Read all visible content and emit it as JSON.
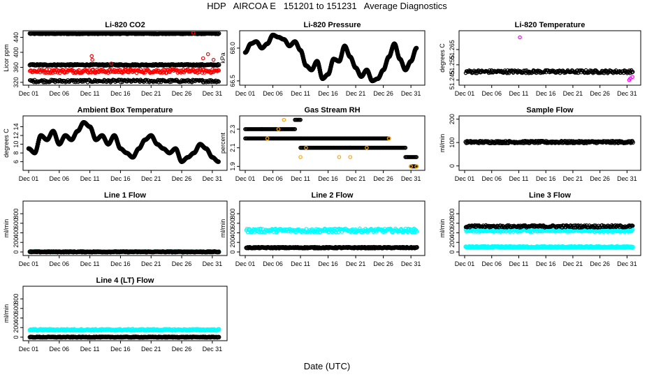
{
  "title": "HDP   AIRCOA E   151201 to 151231   Average Diagnostics",
  "xlabel": "Date (UTC)",
  "chart_data": [
    {
      "type": "scatter",
      "title": "Li-820 CO2",
      "ylabel": "Licor ppm",
      "ylim": [
        318,
        452
      ],
      "yticks": [
        320,
        360,
        400,
        440
      ],
      "xticks": [
        "Dec 01",
        "Dec 06",
        "Dec 11",
        "Dec 16",
        "Dec 21",
        "Dec 26",
        "Dec 31"
      ],
      "xlim": [
        0,
        31.5
      ],
      "series": [
        {
          "name": "high",
          "color": "#000000",
          "bands": [
            [
              449,
              451
            ]
          ]
        },
        {
          "name": "mid",
          "color": "#000000",
          "bands": [
            [
              365,
              368
            ]
          ]
        },
        {
          "name": "low",
          "color": "#000000",
          "bands": [
            [
              320,
              327
            ]
          ]
        },
        {
          "name": "red",
          "color": "#ff0000",
          "bands": [
            [
              345,
              355
            ]
          ],
          "outliers": [
            [
              10.3,
              390
            ],
            [
              10.4,
              380
            ],
            [
              13.5,
              370
            ],
            [
              28.5,
              384
            ],
            [
              29.3,
              395
            ],
            [
              30.2,
              380
            ],
            [
              26.9,
              452
            ]
          ]
        }
      ]
    },
    {
      "type": "line",
      "title": "Li-820 Pressure",
      "ylabel": "kPa",
      "ylim": [
        66.4,
        68.7
      ],
      "yticks": [
        66.5,
        68.0
      ],
      "ytick_labels": [
        "66.5",
        "68.0"
      ],
      "xticks": [
        "Dec 01",
        "Dec 06",
        "Dec 11",
        "Dec 16",
        "Dec 21",
        "Dec 26",
        "Dec 31"
      ],
      "xlim": [
        0,
        31.5
      ],
      "x": [
        0,
        1,
        2,
        3,
        4,
        5,
        6,
        7,
        8,
        9,
        10,
        11,
        12,
        13,
        14,
        15,
        16,
        17,
        18,
        19,
        20,
        21,
        22,
        23,
        24,
        25,
        26,
        27,
        28,
        29,
        30,
        31
      ],
      "y": [
        67.8,
        68.2,
        68.3,
        68.0,
        68.2,
        68.6,
        68.5,
        68.4,
        68.1,
        68.3,
        67.9,
        67.2,
        67.0,
        67.4,
        66.6,
        66.8,
        67.5,
        67.4,
        68.1,
        67.6,
        67.1,
        66.7,
        67.0,
        66.5,
        66.6,
        67.0,
        67.6,
        68.2,
        67.5,
        67.0,
        67.4,
        68.0
      ],
      "series": [
        {
          "name": "pressure",
          "color": "#000000"
        }
      ]
    },
    {
      "type": "scatter",
      "title": "Li-820 Temperature",
      "ylabel": "degrees C",
      "ylim": [
        51.243,
        51.276
      ],
      "yticks": [
        51.245,
        51.255,
        51.265
      ],
      "ytick_labels": [
        "51.245",
        "51.255",
        "51.265"
      ],
      "xticks": [
        "Dec 01",
        "Dec 06",
        "Dec 11",
        "Dec 16",
        "Dec 21",
        "Dec 26",
        "Dec 31"
      ],
      "xlim": [
        0,
        31.5
      ],
      "series": [
        {
          "name": "temp",
          "color": "#000000",
          "bands": [
            [
              51.2495,
              51.2515
            ]
          ]
        },
        {
          "name": "mag",
          "color": "#ff00ff",
          "outliers": [
            [
              10.2,
              51.273
            ],
            [
              30.4,
              51.245
            ],
            [
              30.6,
              51.246
            ],
            [
              31.0,
              51.247
            ]
          ]
        }
      ]
    },
    {
      "type": "line",
      "title": "Ambient Box Temperature",
      "ylabel": "degrees C",
      "ylim": [
        4.5,
        16
      ],
      "yticks": [
        6,
        8,
        10,
        12,
        14
      ],
      "xticks": [
        "Dec 01",
        "Dec 06",
        "Dec 11",
        "Dec 16",
        "Dec 21",
        "Dec 26",
        "Dec 31"
      ],
      "xlim": [
        0,
        31.5
      ],
      "x": [
        0,
        1,
        2,
        3,
        4,
        5,
        6,
        7,
        8,
        9,
        10,
        11,
        12,
        13,
        14,
        15,
        16,
        17,
        18,
        19,
        20,
        21,
        22,
        23,
        24,
        25,
        26,
        27,
        28,
        29,
        30,
        31
      ],
      "y": [
        9,
        8,
        12,
        11,
        13,
        10,
        12,
        11,
        13,
        15,
        14,
        11,
        12,
        10,
        12,
        9,
        8,
        7,
        9,
        11,
        12,
        10,
        9,
        8,
        9,
        6,
        7,
        8,
        10,
        9,
        7,
        6
      ],
      "series": [
        {
          "name": "temperature",
          "color": "#000000"
        }
      ]
    },
    {
      "type": "scatter",
      "title": "Gas Stream RH",
      "ylabel": "percent",
      "ylim": [
        1.88,
        2.42
      ],
      "yticks": [
        1.9,
        2.1,
        2.3
      ],
      "ytick_labels": [
        "1.9",
        "2.1",
        "2.3"
      ],
      "xticks": [
        "Dec 01",
        "Dec 06",
        "Dec 11",
        "Dec 16",
        "Dec 21",
        "Dec 26",
        "Dec 31"
      ],
      "xlim": [
        0,
        31.5
      ],
      "series": [
        {
          "name": "rh",
          "color": "#000000",
          "steps": [
            [
              0,
              3,
              2.3
            ],
            [
              0,
              10,
              2.2
            ],
            [
              3,
              9,
              2.3
            ],
            [
              9,
              10,
              2.4
            ],
            [
              10,
              19,
              2.1
            ],
            [
              10,
              26,
              2.2
            ],
            [
              19,
              29,
              2.1
            ],
            [
              29,
              31,
              2.0
            ],
            [
              30,
              31,
              1.9
            ]
          ]
        },
        {
          "name": "orange",
          "color": "#ffa500",
          "outliers": [
            [
              4,
              2.2
            ],
            [
              6,
              2.3
            ],
            [
              7,
              2.4
            ],
            [
              10,
              2.0
            ],
            [
              11,
              2.1
            ],
            [
              17,
              2.0
            ],
            [
              19,
              2.0
            ],
            [
              22,
              2.1
            ],
            [
              26,
              2.2
            ],
            [
              30,
              1.9
            ],
            [
              31,
              1.9
            ]
          ]
        }
      ]
    },
    {
      "type": "scatter",
      "title": "Sample Flow",
      "ylabel": "ml/min",
      "ylim": [
        -10,
        205
      ],
      "yticks": [
        0,
        100,
        200
      ],
      "xticks": [
        "Dec 01",
        "Dec 06",
        "Dec 11",
        "Dec 16",
        "Dec 21",
        "Dec 26",
        "Dec 31"
      ],
      "xlim": [
        0,
        31.5
      ],
      "series": [
        {
          "name": "flow",
          "color": "#000000",
          "bands": [
            [
              98,
              106
            ]
          ]
        }
      ]
    },
    {
      "type": "scatter",
      "title": "Line 1 Flow",
      "ylabel": "ml/min",
      "ylim": [
        -30,
        1020
      ],
      "yticks": [
        0,
        200,
        400,
        600,
        800
      ],
      "xticks": [
        "Dec 01",
        "Dec 06",
        "Dec 11",
        "Dec 16",
        "Dec 21",
        "Dec 26",
        "Dec 31"
      ],
      "xlim": [
        0,
        31.5
      ],
      "series": [
        {
          "name": "cyan",
          "color": "#00ffff",
          "bands": [
            [
              0,
              15
            ]
          ]
        },
        {
          "name": "flow",
          "color": "#000000",
          "bands": [
            [
              -5,
              10
            ]
          ]
        }
      ]
    },
    {
      "type": "scatter",
      "title": "Line 2 Flow",
      "ylabel": "ml/min",
      "ylim": [
        -30,
        1020
      ],
      "yticks": [
        0,
        200,
        400,
        600,
        800
      ],
      "xticks": [
        "Dec 01",
        "Dec 06",
        "Dec 11",
        "Dec 16",
        "Dec 21",
        "Dec 26",
        "Dec 31"
      ],
      "xlim": [
        0,
        31.5
      ],
      "series": [
        {
          "name": "cyan",
          "color": "#00ffff",
          "bands": [
            [
              410,
              490
            ]
          ]
        },
        {
          "name": "flow",
          "color": "#000000",
          "bands": [
            [
              80,
              100
            ]
          ]
        }
      ]
    },
    {
      "type": "scatter",
      "title": "Line 3 Flow",
      "ylabel": "ml/min",
      "ylim": [
        -30,
        1020
      ],
      "yticks": [
        0,
        200,
        400,
        600,
        800
      ],
      "xticks": [
        "Dec 01",
        "Dec 06",
        "Dec 11",
        "Dec 16",
        "Dec 21",
        "Dec 26",
        "Dec 31"
      ],
      "xlim": [
        0,
        31.5
      ],
      "series": [
        {
          "name": "cyan",
          "color": "#00ffff",
          "bands": [
            [
              90,
              115
            ],
            [
              420,
              470
            ]
          ]
        },
        {
          "name": "flow",
          "color": "#000000",
          "bands": [
            [
              510,
              560
            ]
          ]
        }
      ]
    },
    {
      "type": "scatter",
      "title": "Line 4 (LT) Flow",
      "ylabel": "ml/min",
      "ylim": [
        -30,
        1020
      ],
      "yticks": [
        0,
        200,
        400,
        600,
        800
      ],
      "xticks": [
        "Dec 01",
        "Dec 06",
        "Dec 11",
        "Dec 16",
        "Dec 21",
        "Dec 26",
        "Dec 31"
      ],
      "xlim": [
        0,
        31.5
      ],
      "series": [
        {
          "name": "cyan",
          "color": "#00ffff",
          "bands": [
            [
              140,
              165
            ]
          ]
        },
        {
          "name": "flow",
          "color": "#000000",
          "bands": [
            [
              -5,
              8
            ]
          ]
        }
      ]
    }
  ]
}
